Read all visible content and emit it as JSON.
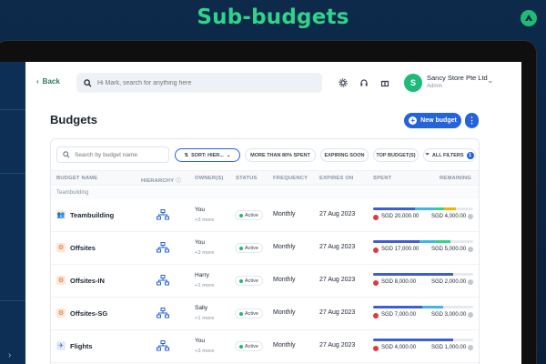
{
  "headline": "Sub-budgets",
  "topbar": {
    "back_label": "Back",
    "search_placeholder": "Hi Mark, search for anything here",
    "org_name": "Sancy Store Pte Ltd",
    "org_role": "Admin",
    "avatar_initial": "S"
  },
  "page": {
    "title": "Budgets",
    "new_budget_label": "New budget",
    "more_label": "⋮"
  },
  "filters": {
    "search_placeholder": "Search by budget name",
    "sort_label": "SORT: HIER...",
    "chips": [
      "MORE THAN 80% SPENT",
      "EXPIRING SOON",
      "TOP BUDGET(S)"
    ],
    "all_filters_label": "ALL FILTERS",
    "all_filters_count": "1"
  },
  "table": {
    "headers": {
      "name": "BUDGET NAME",
      "hierarchy": "HIERARCHY",
      "owners": "OWNER(S)",
      "status": "STATUS",
      "frequency": "FREQUENCY",
      "expires": "EXPIRES ON",
      "spent": "SPENT",
      "remaining": "REMAINING"
    },
    "group_label": "Teambuilding",
    "rows": [
      {
        "name": "Teambuilding",
        "owner": "You",
        "more": "+3 more",
        "status": "Active",
        "frequency": "Monthly",
        "expires": "27 Aug 2023",
        "spent": "SGD 20,000.00",
        "remaining": "SGD 4,000.00",
        "spent_fraction": 0.83
      },
      {
        "name": "Offsites",
        "owner": "You",
        "more": "+3 more",
        "status": "Active",
        "frequency": "Monthly",
        "expires": "27 Aug 2023",
        "spent": "SGD 17,000.00",
        "remaining": "SGD 5,000.00",
        "spent_fraction": 0.77
      },
      {
        "name": "Offsites-IN",
        "owner": "Harry",
        "more": "+1 more",
        "status": "Active",
        "frequency": "Monthly",
        "expires": "27 Aug 2023",
        "spent": "SGD 8,000.00",
        "remaining": "SGD 2,000.00",
        "spent_fraction": 0.8
      },
      {
        "name": "Offsites-SG",
        "owner": "Sally",
        "more": "+1 more",
        "status": "Active",
        "frequency": "Monthly",
        "expires": "27 Aug 2023",
        "spent": "SGD 7,000.00",
        "remaining": "SGD 3,000.00",
        "spent_fraction": 0.7
      },
      {
        "name": "Flights",
        "owner": "You",
        "more": "+3 more",
        "status": "Active",
        "frequency": "Monthly",
        "expires": "27 Aug 2023",
        "spent": "SGD 4,000.00",
        "remaining": "SGD 1,000.00",
        "spent_fraction": 0.8
      }
    ]
  },
  "colors": {
    "headline": "#2fd48a",
    "accent": "#2563d9",
    "brand_green": "#1fb978",
    "bar_segments": [
      "#3e5fcf",
      "#3fb6e8",
      "#2fd48a",
      "#f2b400"
    ]
  }
}
